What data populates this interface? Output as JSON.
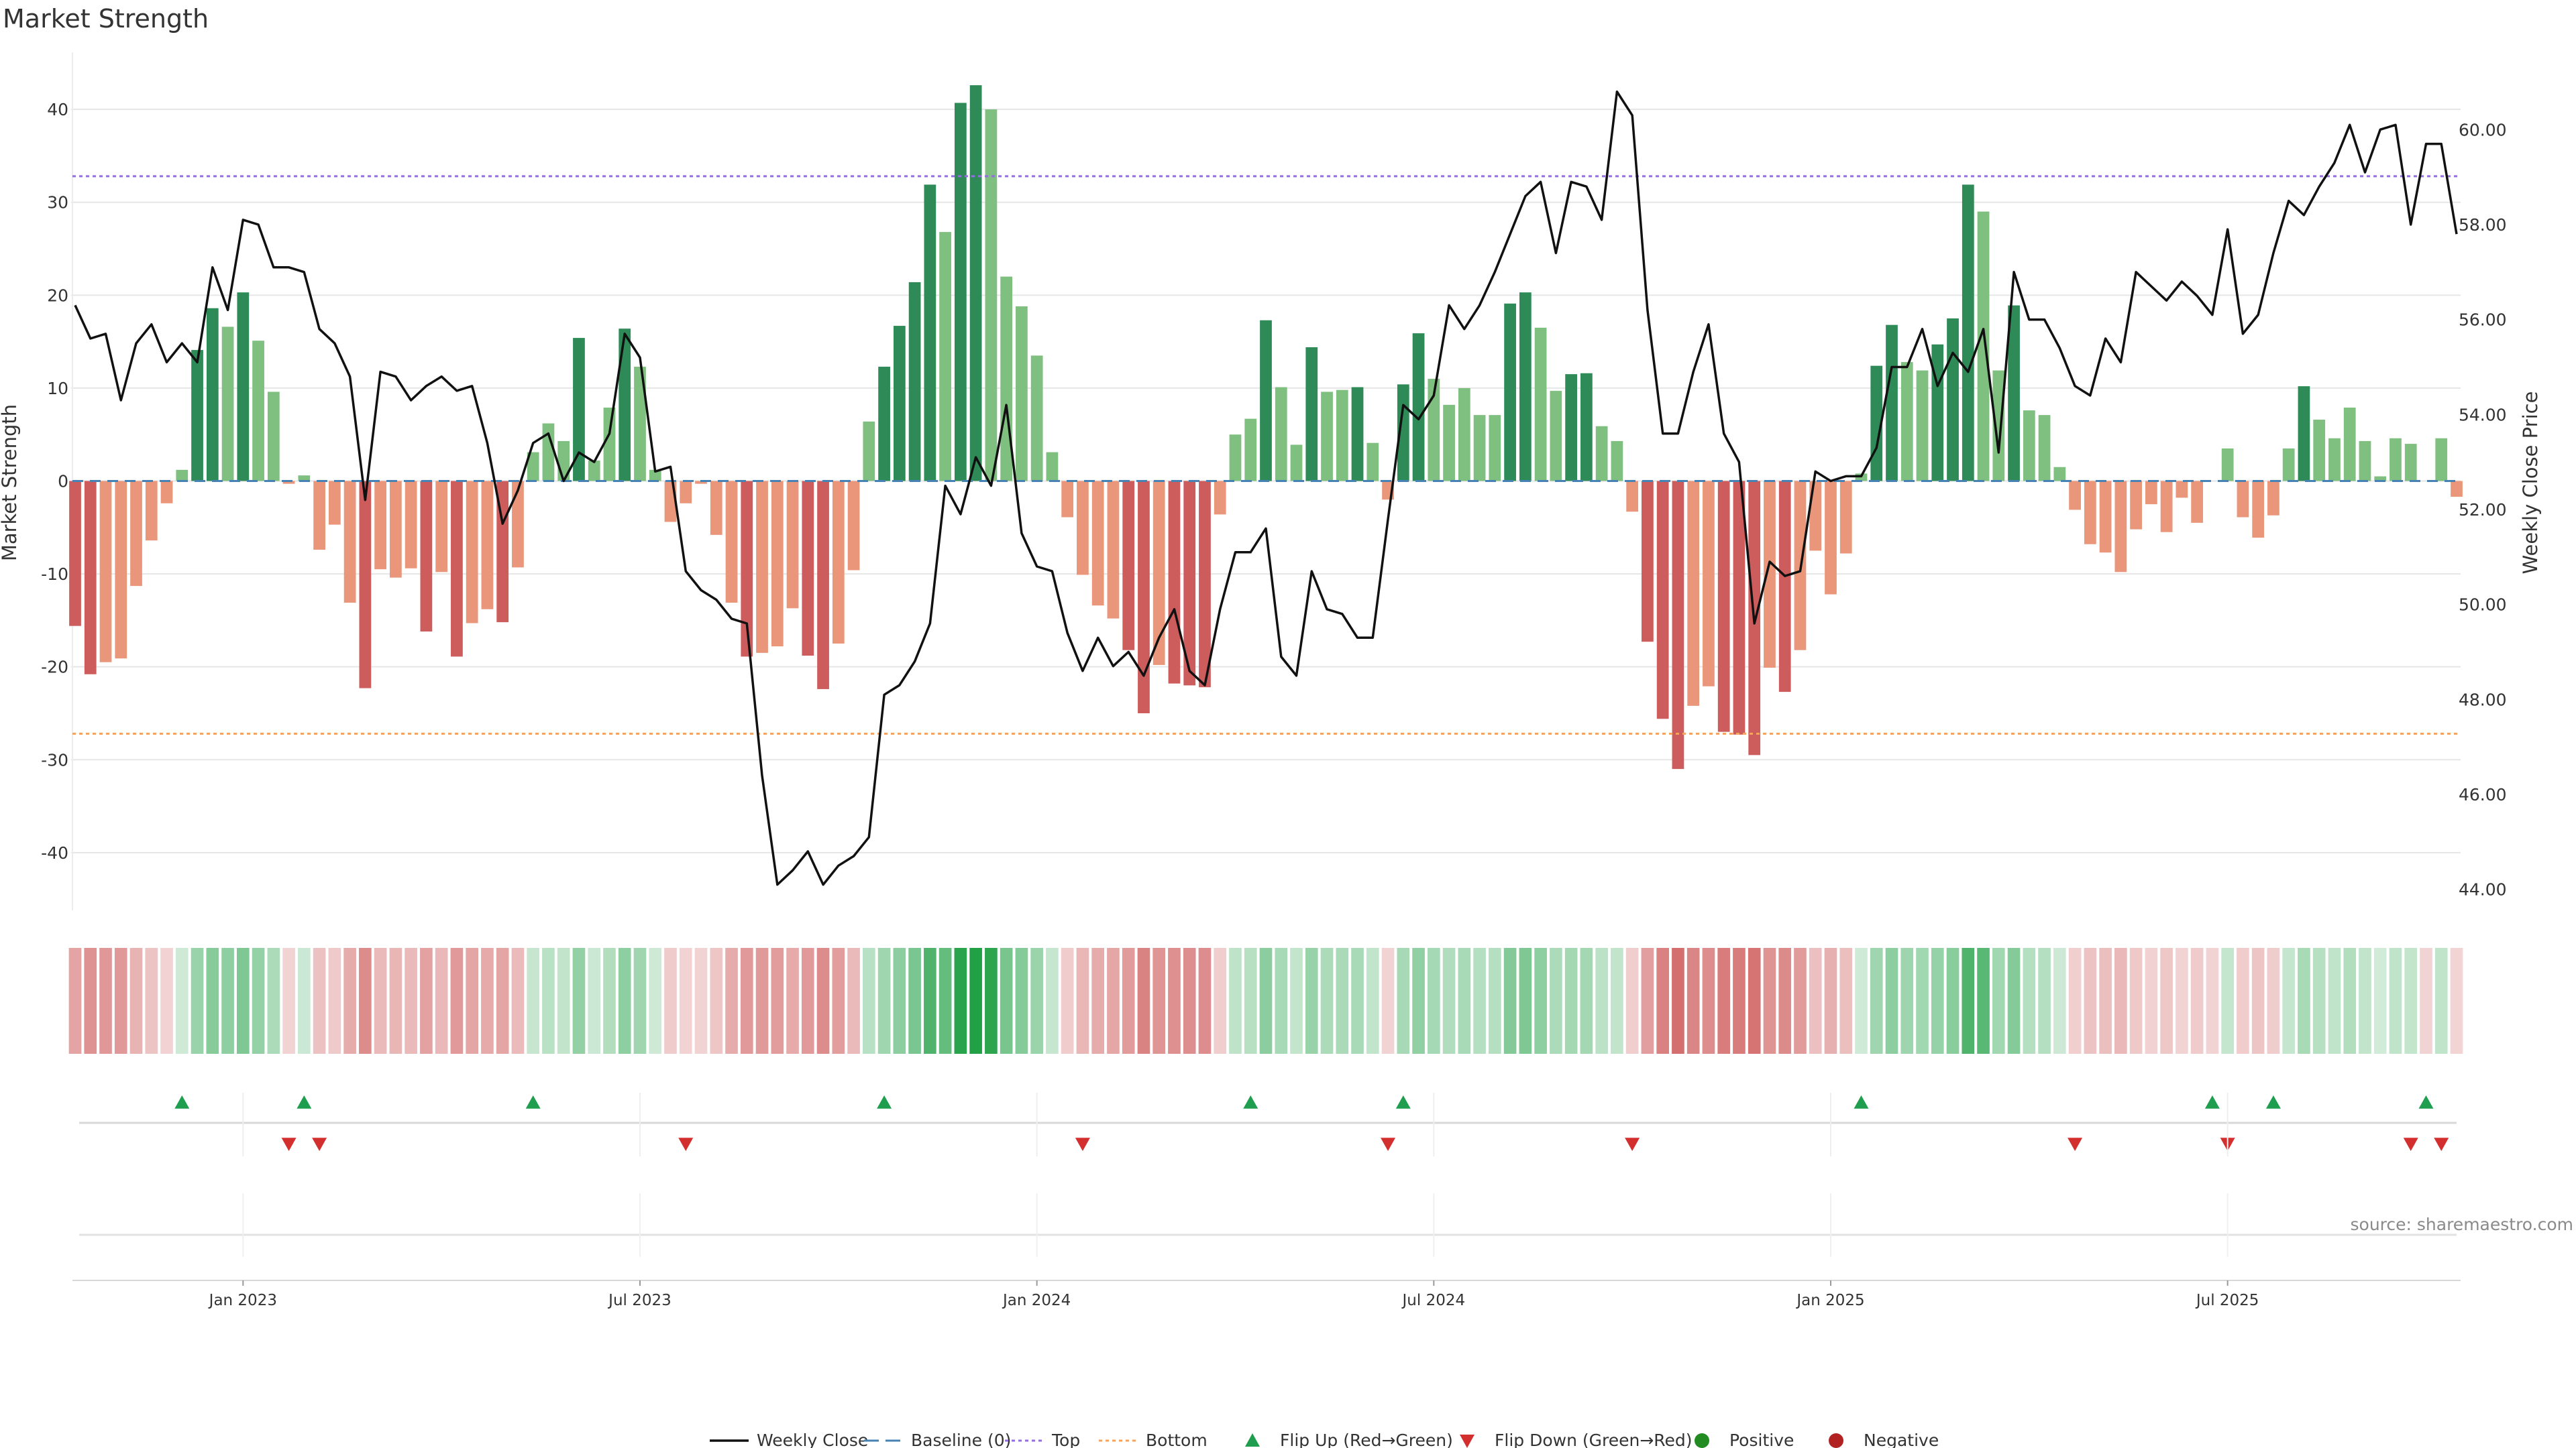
{
  "title": "Market Strength",
  "source": "source: sharemaestro.com",
  "chart_data": {
    "type": "bar",
    "start_date": "2022-10-16",
    "interval": "weekly",
    "ylabel_left": "Market Strength",
    "ylabel_right": "Weekly Close Price",
    "ylim_left": [
      -46,
      46
    ],
    "ylim_right": [
      43.6,
      61.6
    ],
    "yticks_left": [
      -40,
      -30,
      -20,
      -10,
      0,
      10,
      20,
      30,
      40
    ],
    "yticks_right": [
      "44.00",
      "46.00",
      "48.00",
      "50.00",
      "52.00",
      "54.00",
      "56.00",
      "58.00",
      "60.00"
    ],
    "x_ticks": [
      {
        "label": "Jan 2023",
        "index": 11
      },
      {
        "label": "Jul 2023",
        "index": 37
      },
      {
        "label": "Jan 2024",
        "index": 63
      },
      {
        "label": "Jul 2024",
        "index": 89
      },
      {
        "label": "Jan 2025",
        "index": 115
      },
      {
        "label": "Jul 2025",
        "index": 141
      }
    ],
    "top_line": 32.8,
    "bottom_line": -27.2,
    "strength": [
      -15.6,
      -20.8,
      -19.5,
      -19.1,
      -11.3,
      -6.4,
      -2.4,
      1.2,
      14.1,
      18.6,
      16.6,
      20.3,
      15.1,
      9.6,
      -0.3,
      0.6,
      -7.4,
      -4.7,
      -13.1,
      -22.3,
      -9.5,
      -10.4,
      -9.4,
      -16.2,
      -9.8,
      -18.9,
      -15.3,
      -13.8,
      -15.2,
      -9.3,
      3.1,
      6.2,
      4.3,
      15.4,
      2.2,
      7.9,
      16.4,
      12.3,
      1.2,
      -4.4,
      -2.4,
      -0.3,
      -5.8,
      -13.1,
      -18.9,
      -18.5,
      -17.8,
      -13.7,
      -18.8,
      -22.4,
      -17.5,
      -9.6,
      6.4,
      12.3,
      16.7,
      21.4,
      31.9,
      26.8,
      40.7,
      42.6,
      40.0,
      22.0,
      18.8,
      13.5,
      3.1,
      -3.9,
      -10.1,
      -13.4,
      -14.8,
      -18.2,
      -25.0,
      -19.8,
      -21.8,
      -22.0,
      -22.2,
      -3.6,
      5.0,
      6.7,
      17.3,
      10.1,
      3.9,
      14.4,
      9.6,
      9.8,
      10.1,
      4.1,
      -2.0,
      10.4,
      15.9,
      11.0,
      8.2,
      10.0,
      7.1,
      7.1,
      19.1,
      20.3,
      16.5,
      9.7,
      11.5,
      11.6,
      5.9,
      4.3,
      -3.3,
      -17.3,
      -25.6,
      -31.0,
      -24.2,
      -22.1,
      -27.0,
      -27.3,
      -29.5,
      -20.1,
      -22.7,
      -18.2,
      -7.5,
      -12.2,
      -7.8,
      0.8,
      12.4,
      16.8,
      12.8,
      11.9,
      14.7,
      17.5,
      31.9,
      29.0,
      11.9,
      18.9,
      7.6,
      7.1,
      1.5,
      -3.1,
      -6.8,
      -7.7,
      -9.8,
      -5.2,
      -2.5,
      -5.5,
      -1.8,
      -4.5,
      0.0,
      3.5,
      -3.9,
      -6.1,
      -3.7,
      3.5,
      10.2,
      6.6,
      4.6,
      7.9,
      4.3,
      0.5,
      4.6,
      4.0,
      0.0,
      4.6,
      -1.7
    ],
    "close": [
      56.3,
      55.6,
      55.7,
      54.3,
      55.5,
      55.9,
      55.1,
      55.5,
      55.1,
      57.1,
      56.2,
      58.1,
      58.0,
      57.1,
      57.1,
      57.0,
      55.8,
      55.5,
      54.8,
      52.2,
      54.9,
      54.8,
      54.3,
      54.6,
      54.8,
      54.5,
      54.6,
      53.4,
      51.7,
      52.4,
      53.4,
      53.6,
      52.6,
      53.2,
      53.0,
      53.6,
      55.7,
      55.2,
      52.8,
      52.9,
      50.7,
      50.3,
      50.1,
      49.7,
      49.6,
      46.4,
      44.1,
      44.4,
      44.8,
      44.1,
      44.5,
      44.7,
      45.1,
      48.1,
      48.3,
      48.8,
      49.6,
      52.5,
      51.9,
      53.1,
      52.5,
      54.2,
      51.5,
      50.8,
      50.7,
      49.4,
      48.6,
      49.3,
      48.7,
      49.0,
      48.5,
      49.3,
      49.9,
      48.6,
      48.3,
      49.9,
      51.1,
      51.1,
      51.6,
      48.9,
      48.5,
      50.7,
      49.9,
      49.8,
      49.3,
      49.3,
      51.8,
      54.2,
      53.9,
      54.4,
      56.3,
      55.8,
      56.3,
      57.0,
      57.8,
      58.6,
      58.9,
      57.4,
      58.9,
      58.8,
      58.1,
      60.8,
      60.3,
      56.2,
      53.6,
      53.6,
      54.9,
      55.9,
      53.6,
      53.0,
      49.6,
      50.9,
      50.6,
      50.7,
      52.8,
      52.6,
      52.7,
      52.7,
      53.3,
      55.0,
      55.0,
      55.8,
      54.6,
      55.3,
      54.9,
      55.8,
      53.2,
      57.0,
      56.0,
      56.0,
      55.4,
      54.6,
      54.4,
      55.6,
      55.1,
      57.0,
      56.7,
      56.4,
      56.8,
      56.5,
      56.1,
      57.9,
      55.7,
      56.1,
      57.4,
      58.5,
      58.2,
      58.8,
      59.3,
      60.1,
      59.1,
      60.0,
      60.1,
      58.0,
      59.7,
      59.7,
      57.8
    ],
    "heat_strip": [
      -15.6,
      -20.8,
      -19.5,
      -19.1,
      -11.3,
      -6.4,
      -2.4,
      1.2,
      14.1,
      18.6,
      16.6,
      20.3,
      15.1,
      9.6,
      -2.0,
      2.0,
      -7.4,
      -4.7,
      -13.1,
      -22.3,
      -9.5,
      -10.4,
      -9.4,
      -16.2,
      -9.8,
      -18.9,
      -15.3,
      -13.8,
      -15.2,
      -9.3,
      3.1,
      6.2,
      4.3,
      15.4,
      2.2,
      7.9,
      16.4,
      12.3,
      1.2,
      -4.4,
      -2.4,
      -2.0,
      -5.8,
      -13.1,
      -18.9,
      -18.5,
      -17.8,
      -13.7,
      -18.8,
      -22.4,
      -17.5,
      -9.6,
      6.4,
      12.3,
      16.7,
      21.4,
      31.9,
      26.8,
      40.7,
      42.6,
      40.0,
      22.0,
      18.8,
      13.5,
      3.1,
      -3.9,
      -10.1,
      -13.4,
      -14.8,
      -18.2,
      -25.0,
      -19.8,
      -21.8,
      -22.0,
      -22.2,
      -3.6,
      5.0,
      6.7,
      17.3,
      10.1,
      3.9,
      14.4,
      9.6,
      9.8,
      10.1,
      4.1,
      -2.0,
      10.4,
      15.9,
      11.0,
      8.2,
      10.0,
      7.1,
      7.1,
      19.1,
      20.3,
      16.5,
      9.7,
      11.5,
      11.6,
      5.9,
      4.3,
      -3.3,
      -17.3,
      -25.6,
      -31.0,
      -24.2,
      -22.1,
      -27.0,
      -27.3,
      -29.5,
      -20.1,
      -22.7,
      -18.2,
      -7.5,
      -12.2,
      -7.8,
      0.8,
      12.4,
      16.8,
      12.8,
      11.9,
      14.7,
      17.5,
      31.9,
      29.0,
      11.9,
      18.9,
      7.6,
      7.1,
      1.5,
      -3.1,
      -6.8,
      -7.7,
      -9.8,
      -5.2,
      -2.5,
      -5.5,
      -1.8,
      -4.5,
      -2.0,
      3.5,
      -3.9,
      -6.1,
      -3.7,
      3.5,
      10.2,
      6.6,
      4.6,
      7.9,
      4.3,
      0.5,
      4.6,
      4.0,
      -2.0,
      4.6,
      -1.7
    ],
    "flip_up": [
      7,
      15,
      30,
      53,
      77,
      87,
      117,
      140,
      144,
      154
    ],
    "flip_down": [
      14,
      16,
      40,
      66,
      86,
      102,
      131,
      141,
      153,
      155
    ],
    "colors": {
      "pos_strong": "#2e8b57",
      "pos_weak": "#7fbf7f",
      "neg_strong": "#cd5c5c",
      "neg_weak": "#e9967a",
      "line": "#111111",
      "baseline": "#4682b4",
      "top": "#9370db",
      "bottom": "#f4a460",
      "flip_up": "#1e9e4e",
      "flip_down": "#d32f2f",
      "positive": "#228b22",
      "negative": "#b22222"
    },
    "legend": [
      {
        "label": "Weekly Close",
        "marker": "line"
      },
      {
        "label": "Baseline (0)",
        "marker": "dash"
      },
      {
        "label": "Top",
        "marker": "dot-purple"
      },
      {
        "label": "Bottom",
        "marker": "dot-orange"
      },
      {
        "label": "Flip Up (Red→Green)",
        "marker": "triangle-up"
      },
      {
        "label": "Flip Down (Green→Red)",
        "marker": "triangle-down"
      },
      {
        "label": "Positive",
        "marker": "circle-green"
      },
      {
        "label": "Negative",
        "marker": "circle-red"
      }
    ]
  }
}
